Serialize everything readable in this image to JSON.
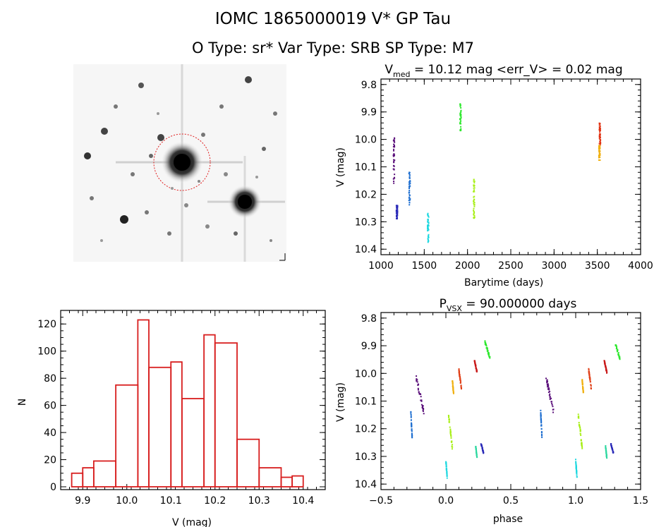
{
  "header": {
    "title": "IOMC 1865000019    V* GP Tau",
    "subtitle": "O Type: sr*  Var Type: SRB  SP Type: M7"
  },
  "panels": {
    "lightcurve_title_main": "V",
    "lightcurve_title_sub": "med",
    "lightcurve_title_rest": " = 10.12 mag <err_V> = 0.02 mag",
    "phase_title_main": "P",
    "phase_title_sub": "VSX",
    "phase_title_rest": " = 90.000000 days"
  },
  "chart_data": [
    {
      "type": "scatter",
      "name": "light-curve",
      "xlabel": "Barytime (days)",
      "ylabel": "V (mag)",
      "xlim": [
        1000,
        4000
      ],
      "ylim": [
        10.42,
        9.78
      ],
      "y_inverted": true,
      "x_ticks": [
        1000,
        1500,
        2000,
        2500,
        3000,
        3500,
        4000
      ],
      "x_tick_labels": [
        "1000",
        "1500",
        "2000",
        "2500",
        "3000",
        "3500",
        "4000"
      ],
      "y_ticks": [
        9.8,
        9.9,
        10.0,
        10.1,
        10.2,
        10.3,
        10.4
      ],
      "y_tick_labels": [
        "9.8",
        "9.9",
        "10.0",
        "10.1",
        "10.2",
        "10.3",
        "10.4"
      ],
      "groups": [
        {
          "x": 1150,
          "y_min": 9.99,
          "y_max": 10.16,
          "color": "#5a0f7a"
        },
        {
          "x": 1185,
          "y_min": 10.24,
          "y_max": 10.29,
          "color": "#2a2ab8"
        },
        {
          "x": 1330,
          "y_min": 10.12,
          "y_max": 10.24,
          "color": "#1f6fd0"
        },
        {
          "x": 1545,
          "y_min": 10.27,
          "y_max": 10.38,
          "color": "#1fd8e0"
        },
        {
          "x": 1920,
          "y_min": 9.87,
          "y_max": 9.97,
          "color": "#2ee82e"
        },
        {
          "x": 2075,
          "y_min": 10.14,
          "y_max": 10.29,
          "color": "#a8ef18"
        },
        {
          "x": 3530,
          "y_min": 9.94,
          "y_max": 10.02,
          "color": "#e03010"
        },
        {
          "x": 3525,
          "y_min": 10.02,
          "y_max": 10.08,
          "color": "#f0b010"
        }
      ]
    },
    {
      "type": "bar",
      "name": "histogram",
      "xlabel": "V (mag)",
      "ylabel": "N",
      "xlim": [
        9.85,
        10.45
      ],
      "ylim": [
        0,
        130
      ],
      "bin_edges": [
        9.875,
        9.9,
        9.925,
        9.95,
        9.975,
        10.0,
        10.025,
        10.05,
        10.075,
        10.1,
        10.125,
        10.15,
        10.175,
        10.2,
        10.225,
        10.25,
        10.275,
        10.3,
        10.325,
        10.35,
        10.375,
        10.4
      ],
      "bins": [
        {
          "x0": 9.875,
          "x1": 9.9,
          "count": 10
        },
        {
          "x0": 9.9,
          "x1": 9.925,
          "count": 14
        },
        {
          "x0": 9.925,
          "x1": 9.95,
          "count": 19
        },
        {
          "x0": 9.95,
          "x1": 9.975,
          "count": 0
        },
        {
          "x0": 9.975,
          "x1": 10.0,
          "count": 75
        },
        {
          "x0": 10.0,
          "x1": 10.025,
          "count": 0
        },
        {
          "x0": 10.025,
          "x1": 10.05,
          "count": 123
        },
        {
          "x0": 10.05,
          "x1": 10.075,
          "count": 88
        },
        {
          "x0": 10.075,
          "x1": 10.1,
          "count": 0
        },
        {
          "x0": 10.1,
          "x1": 10.125,
          "count": 92
        },
        {
          "x0": 10.125,
          "x1": 10.15,
          "count": 65
        },
        {
          "x0": 10.15,
          "x1": 10.175,
          "count": 0
        },
        {
          "x0": 10.175,
          "x1": 10.2,
          "count": 112
        },
        {
          "x0": 10.2,
          "x1": 10.225,
          "count": 106
        },
        {
          "x0": 10.225,
          "x1": 10.25,
          "count": 0
        },
        {
          "x0": 10.25,
          "x1": 10.275,
          "count": 35
        },
        {
          "x0": 10.275,
          "x1": 10.3,
          "count": 0
        },
        {
          "x0": 10.3,
          "x1": 10.325,
          "count": 14
        },
        {
          "x0": 10.325,
          "x1": 10.35,
          "count": 0
        },
        {
          "x0": 10.35,
          "x1": 10.375,
          "count": 7
        },
        {
          "x0": 10.375,
          "x1": 10.4,
          "count": 8
        }
      ],
      "bar_color": "#d81e1e",
      "x_ticks": [
        9.9,
        10.0,
        10.1,
        10.2,
        10.3,
        10.4
      ],
      "x_tick_labels": [
        "9.9",
        "10.0",
        "10.1",
        "10.2",
        "10.3",
        "10.4"
      ],
      "y_ticks": [
        0,
        20,
        40,
        60,
        80,
        100,
        120
      ],
      "y_tick_labels": [
        "0",
        "20",
        "40",
        "60",
        "80",
        "100",
        "120"
      ]
    },
    {
      "type": "scatter",
      "name": "phase-curve",
      "xlabel": "phase",
      "ylabel": "V (mag)",
      "xlim": [
        -0.5,
        1.5
      ],
      "ylim": [
        10.42,
        9.78
      ],
      "y_inverted": true,
      "x_ticks": [
        -0.5,
        0.0,
        0.5,
        1.0,
        1.5
      ],
      "x_tick_labels": [
        "−0.5",
        "0.0",
        "0.5",
        "1.0",
        "1.5"
      ],
      "y_ticks": [
        9.8,
        9.9,
        10.0,
        10.1,
        10.2,
        10.3,
        10.4
      ],
      "y_tick_labels": [
        "9.8",
        "9.9",
        "10.0",
        "10.1",
        "10.2",
        "10.3",
        "10.4"
      ],
      "groups": [
        {
          "phase_min": -0.23,
          "phase_max": -0.17,
          "y_min": 10.0,
          "y_max": 10.15,
          "color": "#5a0f7a"
        },
        {
          "phase_min": 0.27,
          "phase_max": 0.29,
          "y_min": 10.25,
          "y_max": 10.29,
          "color": "#2a2ab8"
        },
        {
          "phase_min": -0.27,
          "phase_max": -0.26,
          "y_min": 10.13,
          "y_max": 10.24,
          "color": "#1f6fd0"
        },
        {
          "phase_min": 0.0,
          "phase_max": 0.01,
          "y_min": 10.31,
          "y_max": 10.38,
          "color": "#1fd8e0"
        },
        {
          "phase_min": 0.23,
          "phase_max": 0.24,
          "y_min": 10.26,
          "y_max": 10.31,
          "color": "#2ed8a0"
        },
        {
          "phase_min": 0.3,
          "phase_max": 0.34,
          "y_min": 9.88,
          "y_max": 9.95,
          "color": "#2ee82e"
        },
        {
          "phase_min": 0.02,
          "phase_max": 0.05,
          "y_min": 10.14,
          "y_max": 10.28,
          "color": "#a8ef18"
        },
        {
          "phase_min": 0.1,
          "phase_max": 0.12,
          "y_min": 9.98,
          "y_max": 10.06,
          "color": "#e04018"
        },
        {
          "phase_min": 0.22,
          "phase_max": 0.24,
          "y_min": 9.95,
          "y_max": 10.0,
          "color": "#c81818"
        },
        {
          "phase_min": 0.05,
          "phase_max": 0.06,
          "y_min": 10.02,
          "y_max": 10.08,
          "color": "#f0b010"
        }
      ]
    }
  ]
}
